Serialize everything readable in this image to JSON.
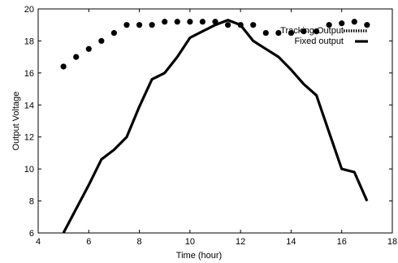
{
  "chart_data": {
    "type": "line",
    "title": "",
    "xlabel": "Time (hour)",
    "ylabel": "Output Voltage",
    "xlim": [
      4,
      18
    ],
    "ylim": [
      6,
      20
    ],
    "xticks": [
      4,
      6,
      8,
      10,
      12,
      14,
      16,
      18
    ],
    "yticks": [
      6,
      8,
      10,
      12,
      14,
      16,
      18,
      20
    ],
    "grid": false,
    "legend_position": "top-right",
    "series": [
      {
        "name": "Tracking Output",
        "style": "dotted-markers",
        "color": "#000000",
        "x": [
          5,
          5.5,
          6,
          6.5,
          7,
          7.5,
          8,
          8.5,
          9,
          9.5,
          10,
          10.5,
          11,
          11.5,
          12,
          12.5,
          13,
          13.5,
          14,
          14.5,
          15,
          15.5,
          16,
          16.5,
          17
        ],
        "y": [
          16.4,
          17.0,
          17.5,
          18.0,
          18.5,
          19.0,
          19.0,
          19.0,
          19.2,
          19.2,
          19.2,
          19.2,
          19.2,
          19.0,
          19.0,
          19.0,
          18.5,
          18.5,
          18.5,
          18.6,
          18.6,
          19.0,
          19.1,
          19.2,
          19.0
        ]
      },
      {
        "name": "Fixed output",
        "style": "solid-line",
        "color": "#000000",
        "x": [
          5,
          5.5,
          6,
          6.5,
          7,
          7.5,
          8,
          8.5,
          9,
          9.5,
          10,
          10.5,
          11,
          11.5,
          12,
          12.5,
          13,
          13.5,
          14,
          14.5,
          15,
          15.5,
          16,
          16.5,
          17
        ],
        "y": [
          6.0,
          7.5,
          9.0,
          10.6,
          11.2,
          12.0,
          13.9,
          15.6,
          16.0,
          17.0,
          18.2,
          18.6,
          19.0,
          19.3,
          19.0,
          18.0,
          17.5,
          17.0,
          16.2,
          15.3,
          14.6,
          12.3,
          10.0,
          9.8,
          8.0
        ]
      }
    ]
  }
}
